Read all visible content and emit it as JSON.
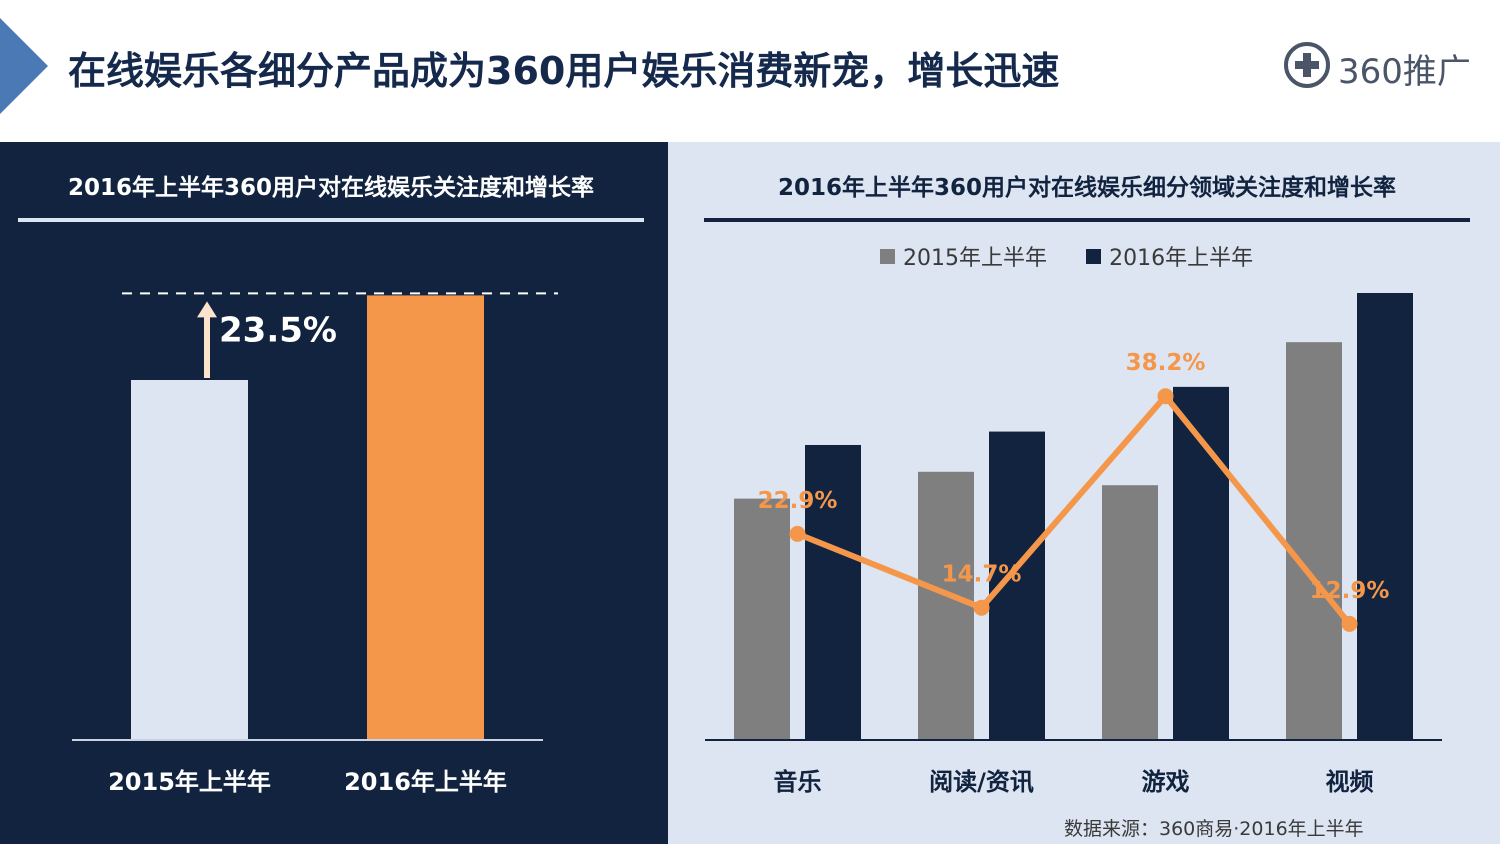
{
  "header": {
    "title": "在线娱乐各细分产品成为360用户娱乐消费新宠，增长迅速",
    "logo_text": "360推广",
    "accent_color": "#4a79b5"
  },
  "left_chart": {
    "title": "2016年上半年360用户对在线娱乐关注度和增长率",
    "growth_label": "23.5%",
    "colors": [
      "#dce5f1",
      "#f5974a"
    ]
  },
  "right_chart": {
    "title": "2016年上半年360用户对在线娱乐细分领域关注度和增长率",
    "legend": [
      "2015年上半年",
      "2016年上半年"
    ],
    "colors": {
      "s2015": "#7f7f7f",
      "s2016": "#12233f",
      "line": "#f5974a"
    }
  },
  "source": "数据来源：360商易·2016年上半年",
  "chart_data": [
    {
      "type": "bar",
      "title": "2016年上半年360用户对在线娱乐关注度和增长率",
      "categories": [
        "2015年上半年",
        "2016年上半年"
      ],
      "values": [
        100,
        123.5
      ],
      "annotation": "23.5%",
      "ylim": [
        0,
        125
      ]
    },
    {
      "type": "bar",
      "title": "2016年上半年360用户对在线娱乐细分领域关注度和增长率",
      "categories": [
        "音乐",
        "阅读/资讯",
        "游戏",
        "视频"
      ],
      "series": [
        {
          "name": "2015年上半年",
          "values": [
            54,
            60,
            57,
            89
          ]
        },
        {
          "name": "2016年上半年",
          "values": [
            66,
            69,
            79,
            100
          ]
        }
      ],
      "line": {
        "values": [
          22.9,
          14.7,
          38.2,
          12.9
        ],
        "labels": [
          "22.9%",
          "14.7%",
          "38.2%",
          "12.9%"
        ],
        "ylim": [
          0,
          60
        ]
      },
      "ylim": [
        0,
        100
      ],
      "legend_position": "top"
    }
  ]
}
